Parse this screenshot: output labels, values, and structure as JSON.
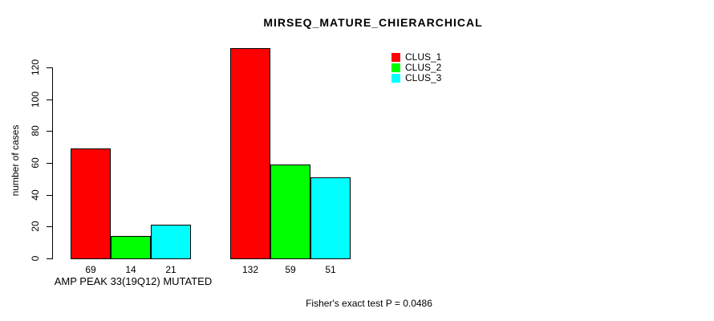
{
  "header": {
    "title": "MIRSEQ_MATURE_CHIERARCHICAL"
  },
  "colors": {
    "background": "#ffffff",
    "axis": "#000000",
    "clus_1": "#ff0000",
    "clus_2": "#00ff00",
    "clus_3": "#00ffff"
  },
  "chart_data": {
    "type": "bar",
    "title": "MIRSEQ_MATURE_CHIERARCHICAL",
    "xlabel": "AMP PEAK 33(19Q12) MUTATED",
    "ylabel": "number of cases",
    "categories": [
      "AMP PEAK 33(19Q12) MUTATED",
      ""
    ],
    "series": [
      {
        "name": "CLUS_1",
        "color": "#ff0000",
        "values": [
          69,
          132
        ]
      },
      {
        "name": "CLUS_2",
        "color": "#00ff00",
        "values": [
          14,
          59
        ]
      },
      {
        "name": "CLUS_3",
        "color": "#00ffff",
        "values": [
          21,
          51
        ]
      }
    ],
    "bar_value_labels": [
      [
        69,
        14,
        21
      ],
      [
        132,
        59,
        51
      ]
    ],
    "yticks": [
      0,
      20,
      40,
      60,
      80,
      100,
      120
    ],
    "ylim": [
      0,
      132
    ],
    "grid": false,
    "legend_position": "top-right",
    "annotation": "Fisher's exact test P = 0.0486"
  }
}
